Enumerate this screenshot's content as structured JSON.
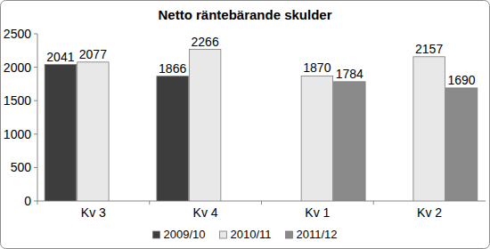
{
  "chart_data": {
    "type": "bar",
    "title": "Netto räntebärande skulder",
    "categories": [
      "Kv 3",
      "Kv 4",
      "Kv 1",
      "Kv 2"
    ],
    "series": [
      {
        "name": "2009/10",
        "color": "#3d3d3d",
        "values": [
          2041,
          1866,
          null,
          null
        ]
      },
      {
        "name": "2010/11",
        "color": "#e8e8e8",
        "values": [
          2077,
          2266,
          1870,
          2157
        ]
      },
      {
        "name": "2011/12",
        "color": "#8a8a8a",
        "values": [
          null,
          null,
          1784,
          1690
        ]
      }
    ],
    "ylim": [
      0,
      2500
    ],
    "yticks": [
      0,
      500,
      1000,
      1500,
      2000,
      2500
    ],
    "grid": false,
    "data_labels": true,
    "legend": "bottom"
  }
}
